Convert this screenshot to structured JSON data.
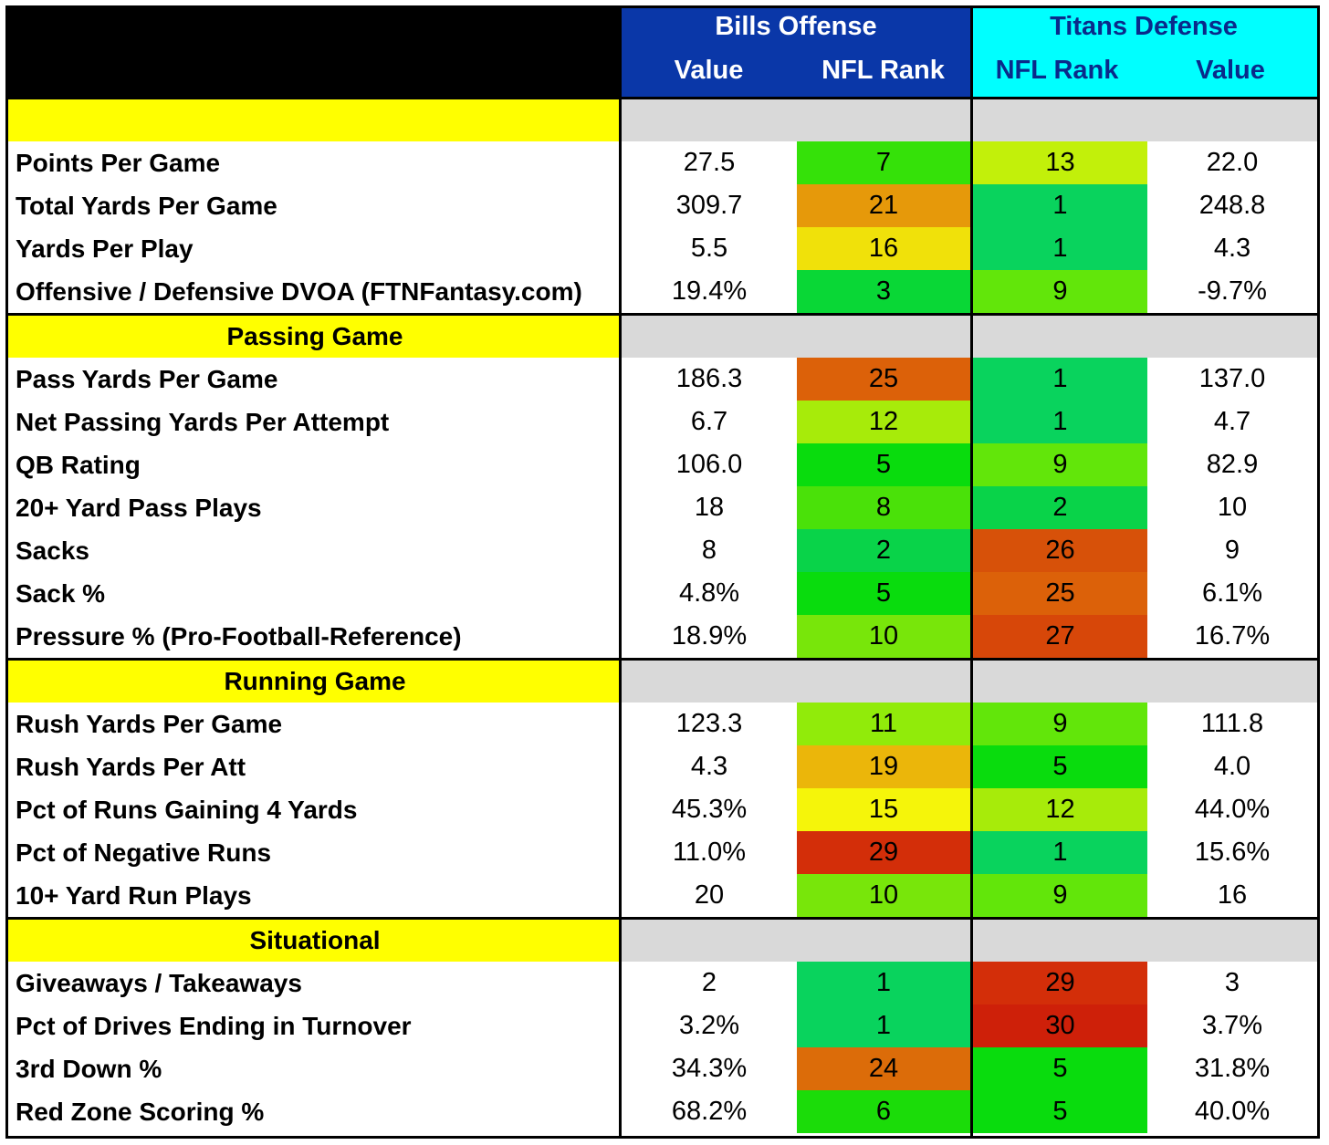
{
  "header": {
    "bills_title": "Bills Offense",
    "titans_title": "Titans Defense",
    "bills_cols": [
      "Value",
      "NFL Rank"
    ],
    "titans_cols": [
      "NFL Rank",
      "Value"
    ]
  },
  "colors": {
    "bills_header": "#0a37a8",
    "titans_header": "#00ffff",
    "section_label": "#ffff00",
    "section_fill": "#d9d9d9"
  },
  "sections": [
    {
      "title": "",
      "rows": [
        {
          "label": "Points Per Game",
          "bills_value": "27.5",
          "bills_rank": "7",
          "titans_rank": "13",
          "titans_value": "22.0"
        },
        {
          "label": "Total Yards Per Game",
          "bills_value": "309.7",
          "bills_rank": "21",
          "titans_rank": "1",
          "titans_value": "248.8"
        },
        {
          "label": "Yards Per Play",
          "bills_value": "5.5",
          "bills_rank": "16",
          "titans_rank": "1",
          "titans_value": "4.3"
        },
        {
          "label": "Offensive / Defensive DVOA (FTNFantasy.com)",
          "bills_value": "19.4%",
          "bills_rank": "3",
          "titans_rank": "9",
          "titans_value": "-9.7%"
        }
      ]
    },
    {
      "title": "Passing Game",
      "rows": [
        {
          "label": "Pass Yards Per Game",
          "bills_value": "186.3",
          "bills_rank": "25",
          "titans_rank": "1",
          "titans_value": "137.0"
        },
        {
          "label": "Net Passing Yards Per Attempt",
          "bills_value": "6.7",
          "bills_rank": "12",
          "titans_rank": "1",
          "titans_value": "4.7"
        },
        {
          "label": "QB Rating",
          "bills_value": "106.0",
          "bills_rank": "5",
          "titans_rank": "9",
          "titans_value": "82.9"
        },
        {
          "label": "20+ Yard Pass Plays",
          "bills_value": "18",
          "bills_rank": "8",
          "titans_rank": "2",
          "titans_value": "10"
        },
        {
          "label": "Sacks",
          "bills_value": "8",
          "bills_rank": "2",
          "titans_rank": "26",
          "titans_value": "9"
        },
        {
          "label": "Sack %",
          "bills_value": "4.8%",
          "bills_rank": "5",
          "titans_rank": "25",
          "titans_value": "6.1%"
        },
        {
          "label": "Pressure % (Pro-Football-Reference)",
          "bills_value": "18.9%",
          "bills_rank": "10",
          "titans_rank": "27",
          "titans_value": "16.7%"
        }
      ]
    },
    {
      "title": "Running Game",
      "rows": [
        {
          "label": "Rush Yards Per Game",
          "bills_value": "123.3",
          "bills_rank": "11",
          "titans_rank": "9",
          "titans_value": "111.8"
        },
        {
          "label": "Rush Yards Per Att",
          "bills_value": "4.3",
          "bills_rank": "19",
          "titans_rank": "5",
          "titans_value": "4.0"
        },
        {
          "label": "Pct of Runs Gaining 4 Yards",
          "bills_value": "45.3%",
          "bills_rank": "15",
          "titans_rank": "12",
          "titans_value": "44.0%"
        },
        {
          "label": "Pct of Negative Runs",
          "bills_value": "11.0%",
          "bills_rank": "29",
          "titans_rank": "1",
          "titans_value": "15.6%"
        },
        {
          "label": "10+ Yard Run Plays",
          "bills_value": "20",
          "bills_rank": "10",
          "titans_rank": "9",
          "titans_value": "16"
        }
      ]
    },
    {
      "title": "Situational",
      "rows": [
        {
          "label": "Giveaways / Takeaways",
          "bills_value": "2",
          "bills_rank": "1",
          "titans_rank": "29",
          "titans_value": "3"
        },
        {
          "label": "Pct of Drives Ending in Turnover",
          "bills_value": "3.2%",
          "bills_rank": "1",
          "titans_rank": "30",
          "titans_value": "3.7%"
        },
        {
          "label": "3rd Down %",
          "bills_value": "34.3%",
          "bills_rank": "24",
          "titans_rank": "5",
          "titans_value": "31.8%"
        },
        {
          "label": "Red Zone Scoring %",
          "bills_value": "68.2%",
          "bills_rank": "6",
          "titans_rank": "5",
          "titans_value": "40.0%"
        }
      ]
    }
  ]
}
